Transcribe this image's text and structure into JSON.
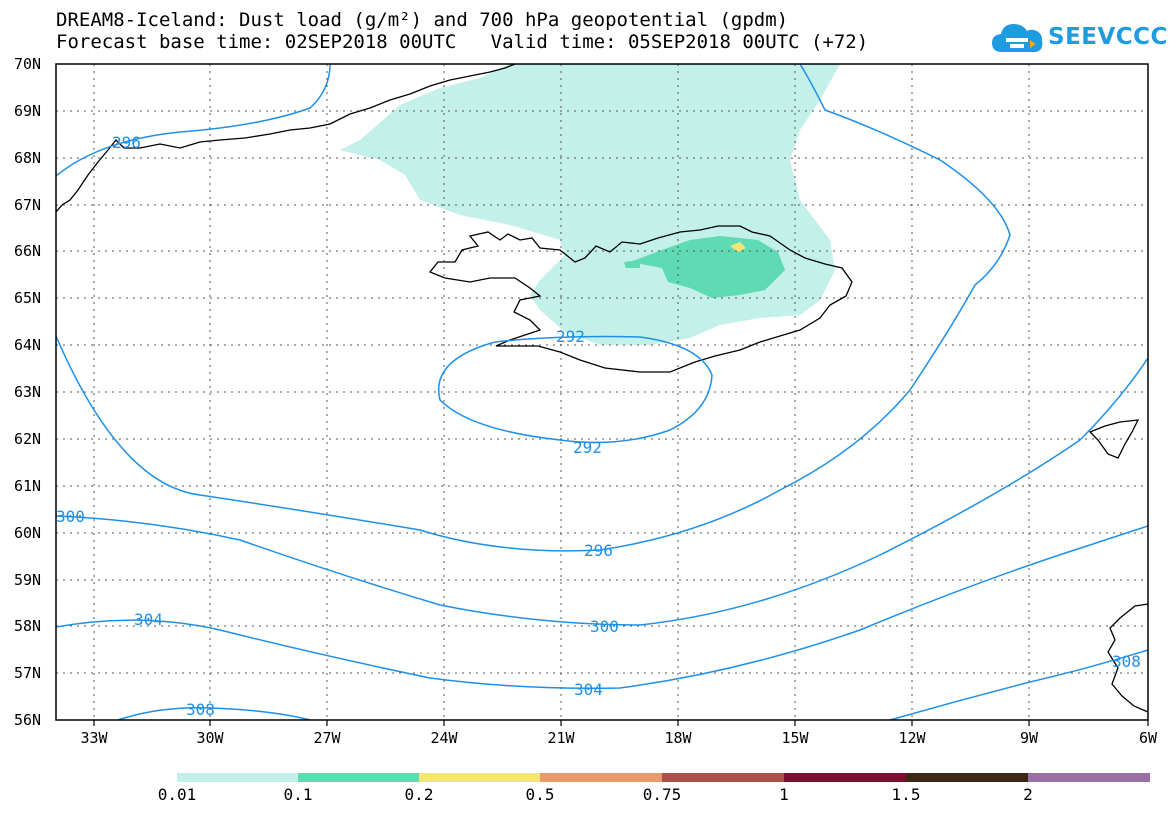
{
  "title": {
    "line1": "DREAM8-Iceland: Dust load (g/m²) and 700 hPa geopotential (gpdm)",
    "line2": "Forecast base time: 02SEP2018 00UTC   Valid time: 05SEP2018 00UTC (+72)"
  },
  "logo": {
    "text": "SEEVCCC",
    "icon": "cloud-icon",
    "color": "#1f9be0"
  },
  "map": {
    "lat_range": [
      56,
      70
    ],
    "lon_range": [
      -34.5,
      -6
    ],
    "lat_labels": [
      "56N",
      "57N",
      "58N",
      "59N",
      "60N",
      "61N",
      "62N",
      "63N",
      "64N",
      "65N",
      "66N",
      "67N",
      "68N",
      "69N",
      "70N"
    ],
    "lon_labels": [
      "33W",
      "30W",
      "27W",
      "24W",
      "21W",
      "18W",
      "15W",
      "12W",
      "9W",
      "6W"
    ],
    "contour_color": "#1e90e8",
    "contour_labels": [
      {
        "text": "296",
        "lon": -33.3,
        "lat": 68.3
      },
      {
        "text": "292",
        "lon": -20.6,
        "lat": 64.2
      },
      {
        "text": "292",
        "lon": -20.6,
        "lat": 61.8
      },
      {
        "text": "300",
        "lon": -34.1,
        "lat": 60.3
      },
      {
        "text": "296",
        "lon": -19.4,
        "lat": 59.6
      },
      {
        "text": "304",
        "lon": -31.9,
        "lat": 58.2
      },
      {
        "text": "300",
        "lon": -19.3,
        "lat": 58.0
      },
      {
        "text": "304",
        "lon": -19.9,
        "lat": 56.6
      },
      {
        "text": "308",
        "lon": -29.8,
        "lat": 56.2
      },
      {
        "text": "308",
        "lon": -6.5,
        "lat": 57.3
      }
    ]
  },
  "colorbar": {
    "labels": [
      "0.01",
      "0.1",
      "0.2",
      "0.5",
      "0.75",
      "1",
      "1.5",
      "2"
    ],
    "colors": [
      "#c3f0e8",
      "#5edbb2",
      "#f5e478",
      "#e89a6a",
      "#a8524a",
      "#7a0e2e",
      "#3c2614",
      "#9a6ea6"
    ]
  }
}
